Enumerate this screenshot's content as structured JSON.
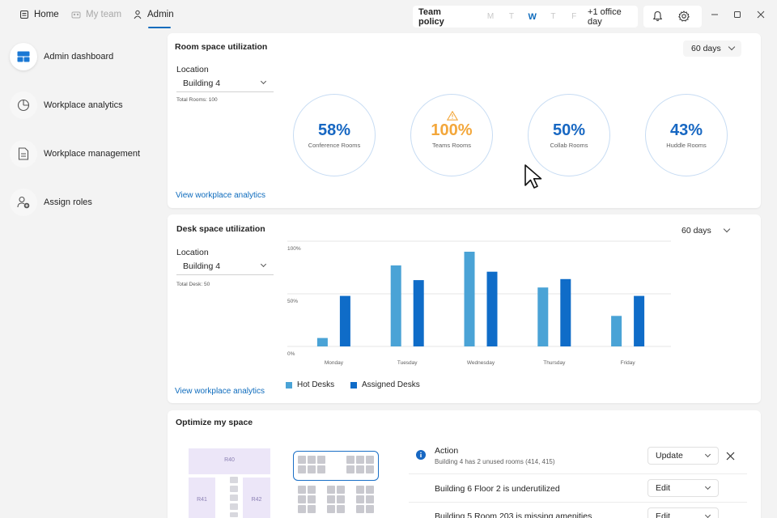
{
  "nav": {
    "home": "Home",
    "my_team": "My team",
    "admin": "Admin"
  },
  "team_policy": {
    "title": "Team policy",
    "days": [
      "M",
      "T",
      "W",
      "T",
      "F"
    ],
    "active_day": "W",
    "extra": "+1 office day"
  },
  "sidebar": {
    "items": [
      {
        "label": "Admin dashboard",
        "icon": "dashboard-icon"
      },
      {
        "label": "Workplace analytics",
        "icon": "pie-chart-icon"
      },
      {
        "label": "Workplace management",
        "icon": "document-icon"
      },
      {
        "label": "Assign roles",
        "icon": "person-add-icon"
      }
    ]
  },
  "room_card": {
    "title": "Room space utilization",
    "range": "60 days",
    "location_label": "Location",
    "location_value": "Building 4",
    "total": "Total Rooms: 100",
    "link": "View workplace analytics",
    "gauges": [
      {
        "value": "58%",
        "label": "Conference Rooms"
      },
      {
        "value": "100%",
        "label": "Teams Rooms"
      },
      {
        "value": "50%",
        "label": "Collab Rooms"
      },
      {
        "value": "43%",
        "label": "Huddle Rooms"
      }
    ]
  },
  "desk_card": {
    "title": "Desk space utilization",
    "range": "60 days",
    "location_label": "Location",
    "location_value": "Building 4",
    "total": "Total Desk: 50",
    "link": "View workplace analytics",
    "legend": [
      "Hot Desks",
      "Assigned Desks"
    ]
  },
  "chart_data": {
    "type": "bar",
    "categories": [
      "Monday",
      "Tuesday",
      "Wednesday",
      "Thursday",
      "Friday"
    ],
    "y_ticks": [
      "100%",
      "50%",
      "0%"
    ],
    "ylim": [
      0,
      100
    ],
    "series": [
      {
        "name": "Hot Desks",
        "color": "#4aa3d6",
        "values": [
          8,
          77,
          90,
          56,
          29
        ]
      },
      {
        "name": "Assigned Desks",
        "color": "#0f6cc8",
        "values": [
          48,
          63,
          71,
          64,
          48
        ]
      }
    ]
  },
  "optimize_card": {
    "title": "Optimize my space",
    "rooms": [
      "R40",
      "R41",
      "R42"
    ],
    "rows": [
      {
        "title": "Action",
        "subtitle": "Building 4 has 2 unused rooms (414, 415)",
        "button": "Update"
      },
      {
        "title": "Building 6 Floor 2 is underutilized",
        "button": "Edit"
      },
      {
        "title": "Building 5 Room 203 is missing amenities",
        "button": "Edit"
      }
    ]
  },
  "colors": {
    "accent": "#0f6cbd",
    "warning": "#f3a73b",
    "gauge_text": "#1767c2"
  }
}
